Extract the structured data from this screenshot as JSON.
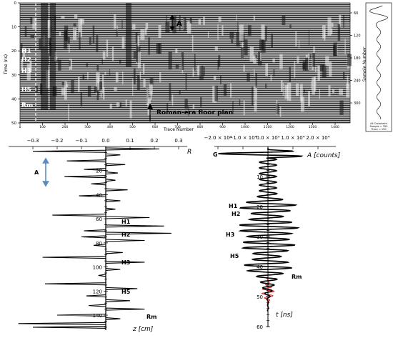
{
  "radargram": {
    "y_label": "Time (ns)",
    "y_ticks": [
      "0",
      "10",
      "20",
      "30",
      "40",
      "50"
    ],
    "x_label": "Trace Number",
    "x_ticks": [
      "0",
      "100",
      "200",
      "300",
      "400",
      "500",
      "600",
      "700",
      "800",
      "900",
      "1000",
      "1100",
      "1200",
      "1300",
      "1400"
    ],
    "right_label": "Sample Number",
    "right_ticks": [
      "60",
      "120",
      "180",
      "240",
      "300"
    ],
    "annotations": {
      "A": "A",
      "H1": "H1",
      "H2": "H2",
      "H3": "H3",
      "H5": "H5",
      "Rm": "Rm",
      "floor_plan": "Roman-era floor plan"
    }
  },
  "trace_inset": {
    "caption_lines": [
      "All Crosshairs",
      "Sample = 350",
      "Trace = 150"
    ]
  },
  "reflectivity_panel": {
    "x_ticks": [
      "−0.3",
      "−0.2",
      "−0.1",
      "0.0",
      "0.1",
      "0.2",
      "0.3"
    ],
    "x_label": "R",
    "y_ticks": [
      "20",
      "40",
      "60",
      "80",
      "100",
      "120",
      "140"
    ],
    "y_label": "z [cm]",
    "labels": {
      "A": "A",
      "H1": "H1",
      "H2": "H2",
      "H3": "H3",
      "H5": "H5",
      "Rm": "Rm"
    }
  },
  "amplitude_panel": {
    "x_ticks": [
      "−2.0 × 10⁴",
      "−1.0 × 10⁴",
      "0.0 × 10⁰",
      "1.0 × 10⁴",
      "2.0 × 10⁴"
    ],
    "x_label": "A [counts]",
    "y_ticks": [
      "10",
      "20",
      "30",
      "40",
      "50",
      "60"
    ],
    "y_label": "t [ns]",
    "labels": {
      "G": "G",
      "H1": "H1",
      "H2": "H2",
      "H3": "H3",
      "H5": "H5",
      "Rm": "Rm"
    }
  },
  "colors": {
    "trace": "#000000",
    "highlight": "#e02020",
    "arrow": "#5b8cc0"
  }
}
